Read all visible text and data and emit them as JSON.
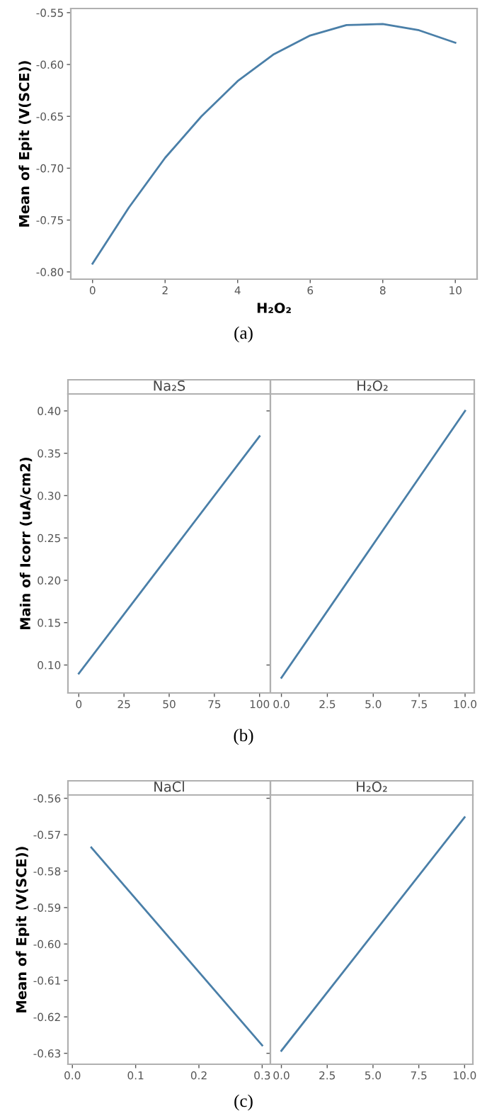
{
  "chart_data": [
    {
      "type": "line",
      "xlabel": "H₂O₂",
      "ylabel": "Mean of Epit (V(SCE))",
      "annotations": [
        "(a)"
      ],
      "series": [
        {
          "color": "#4a7fa8",
          "x": [
            0,
            1,
            2,
            3,
            4,
            5,
            6,
            7,
            8,
            9,
            10
          ],
          "values": [
            -0.792,
            -0.738,
            -0.69,
            -0.65,
            -0.616,
            -0.59,
            -0.572,
            -0.562,
            -0.561,
            -0.567,
            -0.579
          ]
        }
      ],
      "xlim": [
        -0.6,
        10.6
      ],
      "ylim": [
        -0.807,
        -0.546
      ],
      "xticks": [
        0,
        2,
        4,
        6,
        8,
        10
      ],
      "yticks": [
        {
          "value": -0.8,
          "label": "-0.80"
        },
        {
          "value": -0.75,
          "label": "-0.75"
        },
        {
          "value": -0.7,
          "label": "-0.70"
        },
        {
          "value": -0.65,
          "label": "-0.65"
        },
        {
          "value": -0.6,
          "label": "-0.60"
        },
        {
          "value": -0.55,
          "label": "-0.55"
        }
      ],
      "grid": false
    },
    {
      "type": "line",
      "title": "Na₂S",
      "ylabel": "Main of Icorr (uA/cm2)",
      "annotations": [
        "(b)"
      ],
      "series": [
        {
          "color": "#4a7fa8",
          "x": [
            0,
            100
          ],
          "values": [
            0.09,
            0.37
          ]
        }
      ],
      "xlim": [
        -6,
        106
      ],
      "ylim": [
        0.067,
        0.42
      ],
      "xticks": [
        0,
        25,
        50,
        75,
        100
      ],
      "yticks": [
        {
          "value": 0.1,
          "label": "0.10"
        },
        {
          "value": 0.15,
          "label": "0.15"
        },
        {
          "value": 0.2,
          "label": "0.20"
        },
        {
          "value": 0.25,
          "label": "0.25"
        },
        {
          "value": 0.3,
          "label": "0.30"
        },
        {
          "value": 0.35,
          "label": "0.35"
        },
        {
          "value": 0.4,
          "label": "0.40"
        }
      ],
      "grid": false
    },
    {
      "type": "line",
      "title": "H₂O₂",
      "series": [
        {
          "color": "#4a7fa8",
          "x": [
            0,
            10
          ],
          "values": [
            0.085,
            0.4
          ]
        }
      ],
      "xlim": [
        -0.6,
        10.5
      ],
      "ylim": [
        0.067,
        0.42
      ],
      "xticks": [
        {
          "value": 0,
          "label": "0.0"
        },
        {
          "value": 2.5,
          "label": "2.5"
        },
        {
          "value": 5,
          "label": "5.0"
        },
        {
          "value": 7.5,
          "label": "7.5"
        },
        {
          "value": 10,
          "label": "10.0"
        }
      ],
      "yticks": [
        {
          "value": 0.1,
          "label": null
        },
        {
          "value": 0.4,
          "label": null
        }
      ],
      "tick_labels": "x",
      "grid": false
    },
    {
      "type": "line",
      "title": "NaCl",
      "ylabel": "Mean of Epit (V(SCE))",
      "annotations": [
        "(c)"
      ],
      "series": [
        {
          "color": "#4a7fa8",
          "x": [
            0.03,
            0.3
          ],
          "values": [
            -0.5735,
            -0.6278
          ]
        }
      ],
      "xlim": [
        -0.007,
        0.313
      ],
      "ylim": [
        -0.633,
        -0.5591
      ],
      "xticks": [
        {
          "value": 0,
          "label": "0.0"
        },
        {
          "value": 0.1,
          "label": "0.1"
        },
        {
          "value": 0.2,
          "label": "0.2"
        },
        {
          "value": 0.3,
          "label": "0.3"
        }
      ],
      "yticks": [
        -0.63,
        -0.62,
        -0.61,
        {
          "value": -0.6,
          "label": "-0.60"
        },
        -0.59,
        -0.58,
        -0.57,
        -0.56
      ],
      "grid": false
    },
    {
      "type": "line",
      "title": "H₂O₂",
      "series": [
        {
          "color": "#4a7fa8",
          "x": [
            0,
            10
          ],
          "values": [
            -0.6293,
            -0.5652
          ]
        }
      ],
      "xlim": [
        -0.6,
        10.45
      ],
      "ylim": [
        -0.633,
        -0.5591
      ],
      "xticks": [
        {
          "value": 0,
          "label": "0.0"
        },
        {
          "value": 2.5,
          "label": "2.5"
        },
        {
          "value": 5,
          "label": "5.0"
        },
        {
          "value": 7.5,
          "label": "7.5"
        },
        {
          "value": 10,
          "label": "10.0"
        }
      ],
      "yticks": [
        {
          "value": -0.63,
          "label": null
        },
        {
          "value": -0.56,
          "label": null
        }
      ],
      "tick_labels": "x",
      "grid": false
    }
  ]
}
